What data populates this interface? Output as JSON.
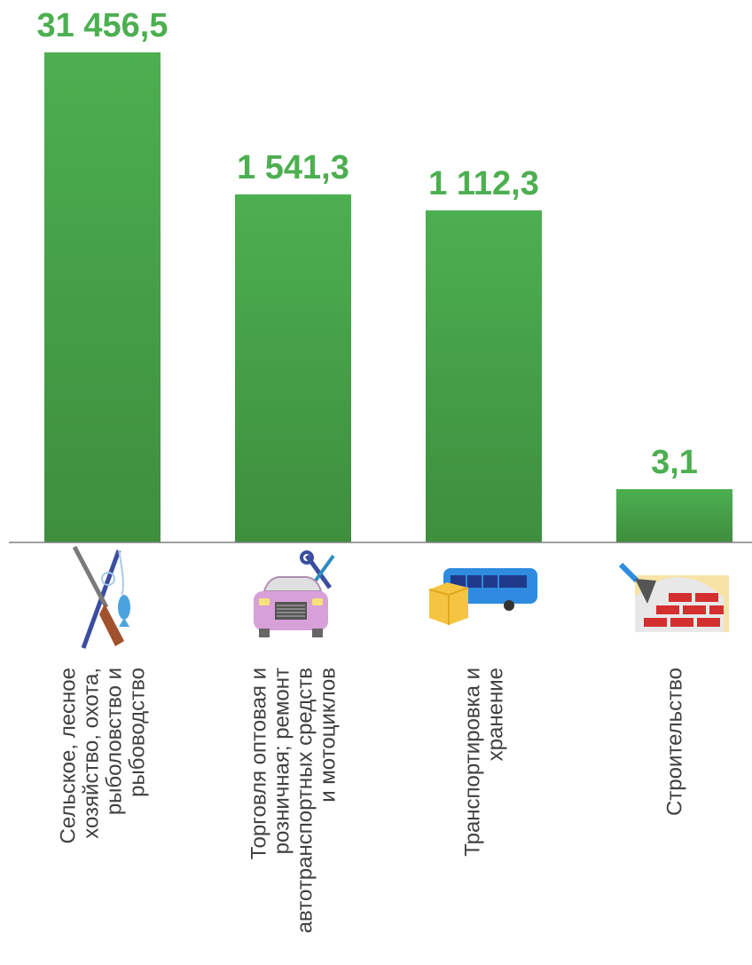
{
  "chart_data": {
    "type": "bar",
    "categories": [
      [
        "Сельское, лесное",
        "хозяйство, охота,",
        "рыболовство и",
        "рыбоводство"
      ],
      [
        "Торговля оптовая и",
        "розничная; ремонт",
        "автотранспортных средств",
        "и мотоциклов"
      ],
      [
        "Транспортировка и",
        "хранение"
      ],
      [
        "Строительство"
      ]
    ],
    "values": [
      31456.5,
      1541.3,
      1112.3,
      3.1
    ],
    "value_labels": [
      "31 456,5",
      "1 541,3",
      "1 112,3",
      "3,1"
    ],
    "category_icons": [
      "hunting-fishing-icon",
      "car-repair-icon",
      "bus-cargo-icon",
      "bricks-trowel-icon"
    ],
    "axis_break": true,
    "grid": false,
    "legend": "none",
    "colors": {
      "bar_top": "#4CAF50",
      "bar_bottom": "#3E8E3E",
      "value_label": "#4CAF50",
      "baseline": "#808080",
      "category_text": "#404040"
    }
  }
}
